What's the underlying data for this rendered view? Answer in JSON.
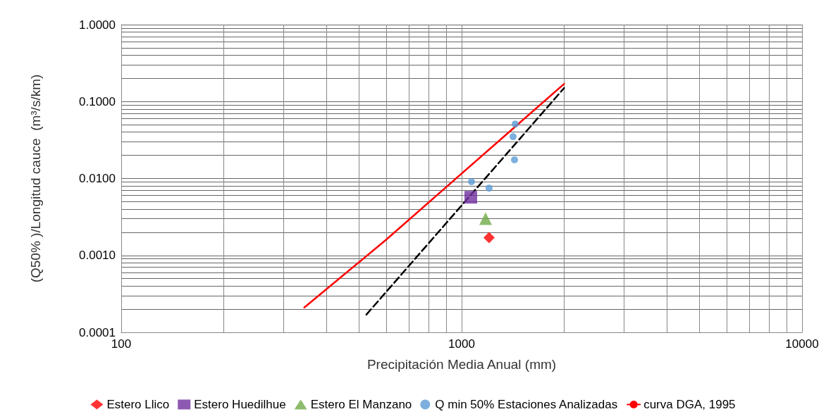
{
  "chart_data": {
    "type": "scatter",
    "xlabel": "Precipitación Media Anual (mm)",
    "ylabel": "(Q50% )/Longitud cauce  (m³/s/km)",
    "log": "xy",
    "grid": true,
    "legend": "bottom",
    "xlim": [
      100,
      10000
    ],
    "ylim": [
      0.0001,
      1
    ],
    "xticks": [
      100,
      {
        "value": 200,
        "label": null
      },
      {
        "value": 300,
        "label": null
      },
      {
        "value": 400,
        "label": null
      },
      {
        "value": 500,
        "label": null
      },
      {
        "value": 600,
        "label": null
      },
      {
        "value": 700,
        "label": null
      },
      {
        "value": 800,
        "label": null
      },
      {
        "value": 900,
        "label": null
      },
      1000,
      {
        "value": 2000,
        "label": null
      },
      {
        "value": 3000,
        "label": null
      },
      {
        "value": 4000,
        "label": null
      },
      {
        "value": 5000,
        "label": null
      },
      {
        "value": 6000,
        "label": null
      },
      {
        "value": 7000,
        "label": null
      },
      {
        "value": 8000,
        "label": null
      },
      {
        "value": 9000,
        "label": null
      },
      10000
    ],
    "yticks": [
      {
        "value": 0.0001,
        "label": "0.0001"
      },
      {
        "value": 0.0002,
        "label": null
      },
      {
        "value": 0.0003,
        "label": null
      },
      {
        "value": 0.0004,
        "label": null
      },
      {
        "value": 0.0005,
        "label": null
      },
      {
        "value": 0.0006,
        "label": null
      },
      {
        "value": 0.0007,
        "label": null
      },
      {
        "value": 0.0008,
        "label": null
      },
      {
        "value": 0.0009,
        "label": null
      },
      {
        "value": 0.001,
        "label": "0.0010"
      },
      {
        "value": 0.002,
        "label": null
      },
      {
        "value": 0.003,
        "label": null
      },
      {
        "value": 0.004,
        "label": null
      },
      {
        "value": 0.005,
        "label": null
      },
      {
        "value": 0.006,
        "label": null
      },
      {
        "value": 0.007,
        "label": null
      },
      {
        "value": 0.008,
        "label": null
      },
      {
        "value": 0.009,
        "label": null
      },
      {
        "value": 0.01,
        "label": "0.0100"
      },
      {
        "value": 0.02,
        "label": null
      },
      {
        "value": 0.03,
        "label": null
      },
      {
        "value": 0.04,
        "label": null
      },
      {
        "value": 0.05,
        "label": null
      },
      {
        "value": 0.06,
        "label": null
      },
      {
        "value": 0.07,
        "label": null
      },
      {
        "value": 0.08,
        "label": null
      },
      {
        "value": 0.09,
        "label": null
      },
      {
        "value": 0.1,
        "label": "0.1000"
      },
      {
        "value": 0.2,
        "label": null
      },
      {
        "value": 0.3,
        "label": null
      },
      {
        "value": 0.4,
        "label": null
      },
      {
        "value": 0.5,
        "label": null
      },
      {
        "value": 0.6,
        "label": null
      },
      {
        "value": 0.7,
        "label": null
      },
      {
        "value": 0.8,
        "label": null
      },
      {
        "value": 0.9,
        "label": null
      },
      {
        "value": 1,
        "label": "1.0000"
      }
    ],
    "series": [
      {
        "name": "Estero Llico",
        "marker": "diamond",
        "color": "#ff0000",
        "x": [
          1204
        ],
        "values": [
          0.0017
        ]
      },
      {
        "name": "Estero Huedilhue",
        "marker": "square",
        "color": "#7030a0",
        "x": [
          1064
        ],
        "values": [
          0.0057
        ]
      },
      {
        "name": "Estero El Manzano",
        "marker": "triangle",
        "color": "#70ad47",
        "x": [
          1176
        ],
        "values": [
          0.003
        ]
      },
      {
        "name": "Q min 50% Estaciones Analizadas",
        "marker": "circle",
        "color": "#5b9bd5",
        "x": [
          1437,
          1416,
          1430,
          1069,
          1204
        ],
        "values": [
          0.051,
          0.035,
          0.0175,
          0.0091,
          0.0075
        ]
      },
      {
        "name": "curva DGA, 1995",
        "type": "line",
        "line_style": "solid",
        "color": "#ff0000",
        "x": [
          345,
          600,
          2000
        ],
        "values": [
          0.00021,
          0.0016,
          0.17
        ]
      },
      {
        "type": "line",
        "line_style": "dashed",
        "color": "#000000",
        "x": [
          525,
          2000
        ],
        "values": [
          0.00017,
          0.15
        ]
      }
    ]
  }
}
